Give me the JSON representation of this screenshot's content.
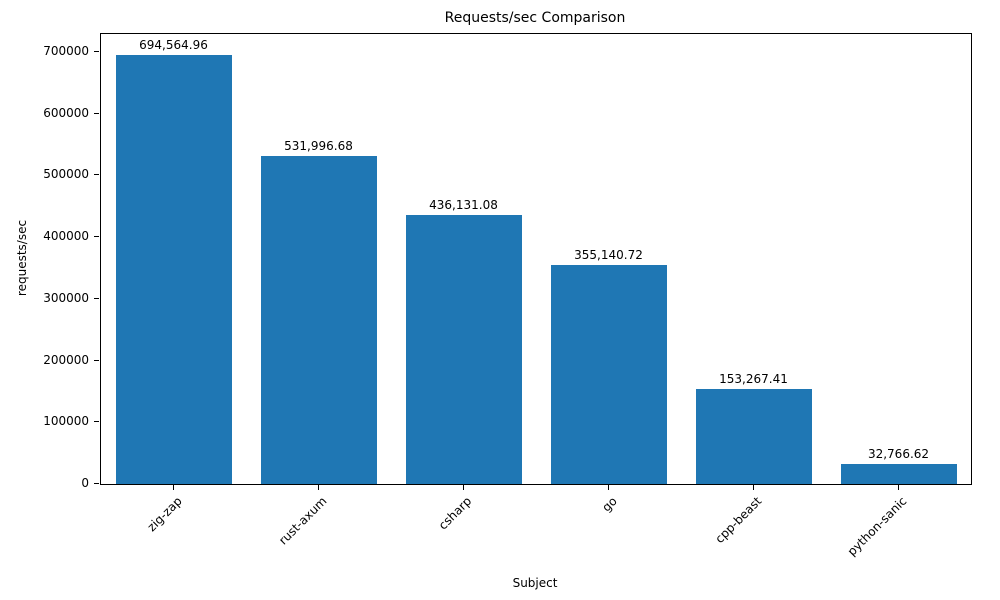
{
  "chart_data": {
    "type": "bar",
    "title": "Requests/sec Comparison",
    "xlabel": "Subject",
    "ylabel": "requests/sec",
    "categories": [
      "zig-zap",
      "rust-axum",
      "csharp",
      "go",
      "cpp-beast",
      "python-sanic"
    ],
    "values": [
      694564.96,
      531996.68,
      436131.08,
      355140.72,
      153267.41,
      32766.62
    ],
    "value_labels": [
      "694,564.96",
      "531,996.68",
      "436,131.08",
      "355,140.72",
      "153,267.41",
      "32,766.62"
    ],
    "yticks": [
      0,
      100000,
      200000,
      300000,
      400000,
      500000,
      600000,
      700000
    ],
    "ylim": [
      0,
      729293
    ],
    "bar_color": "#1f77b4",
    "grid": false,
    "legend_position": "none",
    "background_color": "#ffffff"
  }
}
